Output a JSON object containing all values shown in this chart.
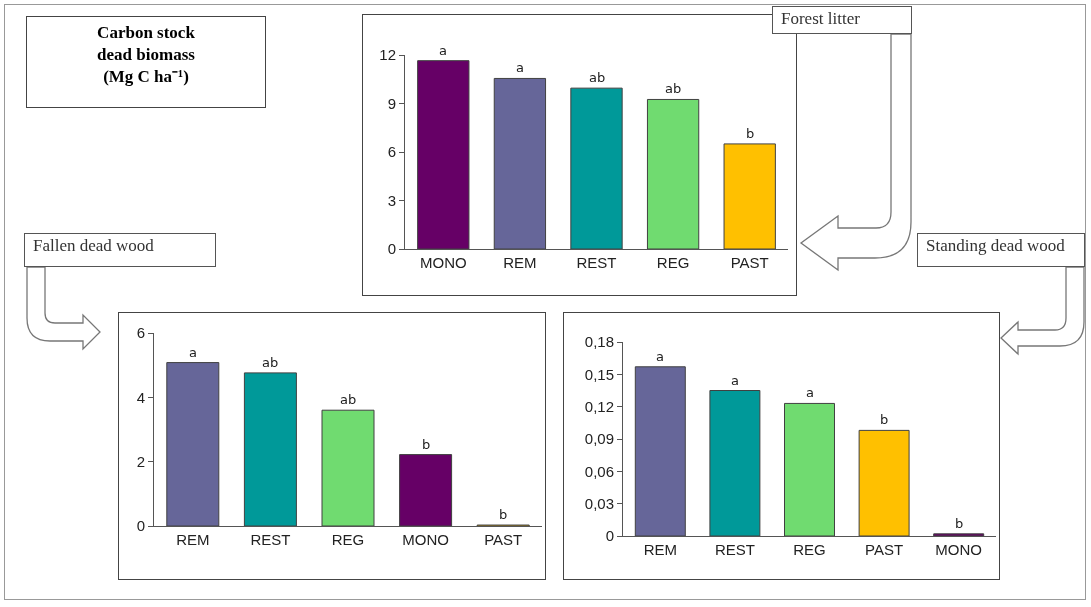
{
  "chart_data": [
    {
      "type": "other",
      "title": "Carbon stock dead biomass (Mg C ha⁻¹)"
    },
    {
      "type": "bar",
      "title": "Forest litter",
      "categories": [
        "MONO",
        "REM",
        "REST",
        "REG",
        "PAST"
      ],
      "values": [
        11.65,
        10.55,
        9.95,
        9.25,
        6.5
      ],
      "colors": [
        "#660066",
        "#666699",
        "#009999",
        "#70db70",
        "#ffc000"
      ],
      "ylim": [
        0,
        12
      ],
      "yticks": [
        0,
        3,
        6,
        9,
        12
      ],
      "annotations": [
        {
          "text": "a",
          "x": "MONO",
          "y": 11.65
        },
        {
          "text": "a",
          "x": "REM",
          "y": 10.55
        },
        {
          "text": "ab",
          "x": "REST",
          "y": 9.95
        },
        {
          "text": "ab",
          "x": "REG",
          "y": 9.25
        },
        {
          "text": "b",
          "x": "PAST",
          "y": 6.5
        }
      ]
    },
    {
      "type": "bar",
      "title": "Fallen dead wood",
      "categories": [
        "REM",
        "REST",
        "REG",
        "MONO",
        "PAST"
      ],
      "values": [
        5.08,
        4.76,
        3.6,
        2.22,
        0.03
      ],
      "colors": [
        "#666699",
        "#009999",
        "#70db70",
        "#660066",
        "#ffc000"
      ],
      "ylim": [
        0,
        6
      ],
      "yticks": [
        0,
        2,
        4,
        6
      ],
      "annotations": [
        {
          "text": "a",
          "x": "REM",
          "y": 5.08
        },
        {
          "text": "ab",
          "x": "REST",
          "y": 4.76
        },
        {
          "text": "ab",
          "x": "REG",
          "y": 3.6
        },
        {
          "text": "b",
          "x": "MONO",
          "y": 2.22
        },
        {
          "text": "b",
          "x": "PAST",
          "y": 0.03
        }
      ]
    },
    {
      "type": "bar",
      "title": "Standing dead wood",
      "categories": [
        "REM",
        "REST",
        "REG",
        "PAST",
        "MONO"
      ],
      "values": [
        0.157,
        0.135,
        0.123,
        0.098,
        0.002
      ],
      "colors": [
        "#666699",
        "#009999",
        "#70db70",
        "#ffc000",
        "#660066"
      ],
      "ylim": [
        0,
        0.18
      ],
      "yticks": [
        0,
        {
          "value": 0.03,
          "label": "0,03"
        },
        {
          "value": 0.06,
          "label": "0,06"
        },
        {
          "value": 0.09,
          "label": "0,09"
        },
        {
          "value": 0.12,
          "label": "0,12"
        },
        {
          "value": 0.15,
          "label": "0,15"
        },
        {
          "value": 0.18,
          "label": "0,18"
        }
      ],
      "annotations": [
        {
          "text": "a",
          "x": "REM",
          "y": 0.157
        },
        {
          "text": "a",
          "x": "REST",
          "y": 0.135
        },
        {
          "text": "a",
          "x": "REG",
          "y": 0.123
        },
        {
          "text": "b",
          "x": "PAST",
          "y": 0.098
        },
        {
          "text": "b",
          "x": "MONO",
          "y": 0.002
        }
      ]
    }
  ]
}
